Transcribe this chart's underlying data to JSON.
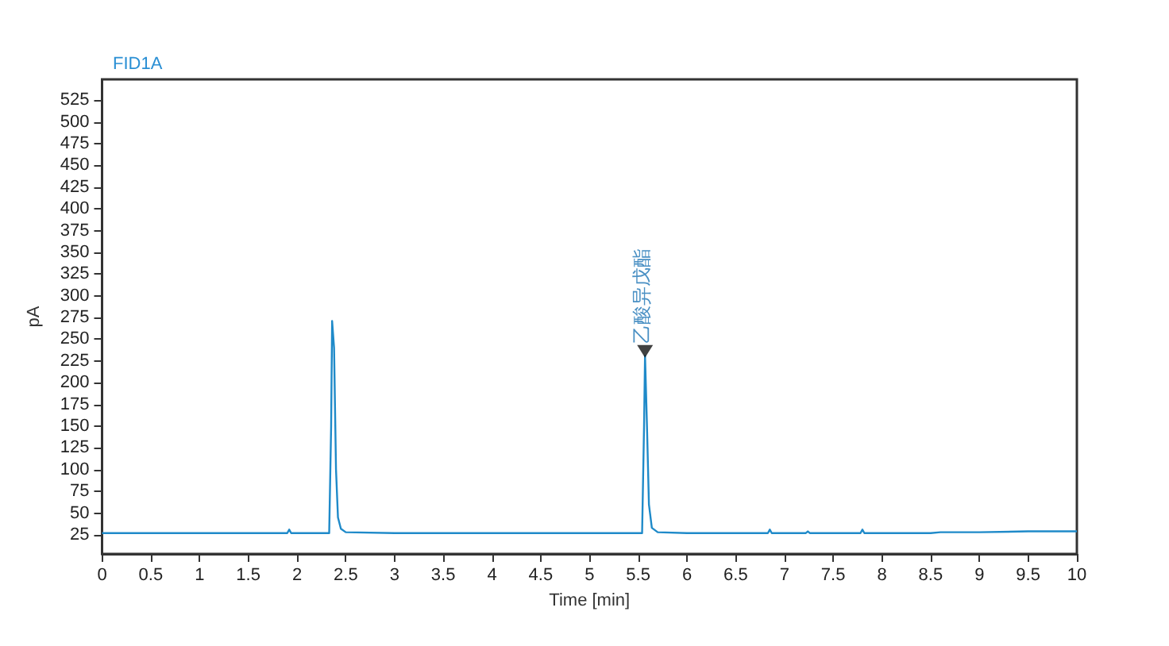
{
  "chart_data": {
    "type": "line",
    "title": "FID1A",
    "xlabel": "Time [min]",
    "ylabel": "pA",
    "series": [
      {
        "color": "#1f8ac9",
        "x": [
          0,
          1.9,
          1.92,
          1.94,
          2.33,
          2.35,
          2.36,
          2.38,
          2.4,
          2.42,
          2.45,
          2.5,
          3,
          4,
          5,
          5.54,
          5.56,
          5.57,
          5.59,
          5.61,
          5.64,
          5.7,
          6,
          6.83,
          6.85,
          6.87,
          7.22,
          7.24,
          7.26,
          7.78,
          7.8,
          7.82,
          8.5,
          8.6,
          9,
          9.5,
          10
        ],
        "values": [
          27,
          27,
          31,
          27,
          27,
          150,
          271,
          240,
          100,
          45,
          32,
          28,
          27,
          27,
          27,
          27,
          150,
          231,
          150,
          60,
          33,
          28,
          27,
          27,
          31,
          27,
          27,
          29,
          27,
          27,
          31,
          27,
          27,
          28,
          28,
          29,
          29
        ]
      },
      {
        "type": "scatter",
        "marker": "triangle",
        "color": "#111111",
        "x": [
          5.57
        ],
        "values": [
          236
        ]
      }
    ],
    "annotations": [
      {
        "text": "乙酸异戊酯",
        "x": 5.57,
        "y": 235
      }
    ],
    "xlim": [
      0,
      10
    ],
    "xticks": [
      0,
      0.5,
      1,
      1.5,
      2,
      2.5,
      3,
      3.5,
      4,
      4.5,
      5,
      5.5,
      6,
      6.5,
      7,
      7.5,
      8,
      8.5,
      9,
      9.5,
      10
    ],
    "ylim": [
      3,
      549
    ],
    "yticks": [
      25,
      50,
      75,
      100,
      125,
      150,
      175,
      200,
      225,
      250,
      275,
      300,
      325,
      350,
      375,
      400,
      425,
      450,
      475,
      500,
      525
    ],
    "grid": false,
    "marker": "none",
    "line_style": "solid"
  }
}
